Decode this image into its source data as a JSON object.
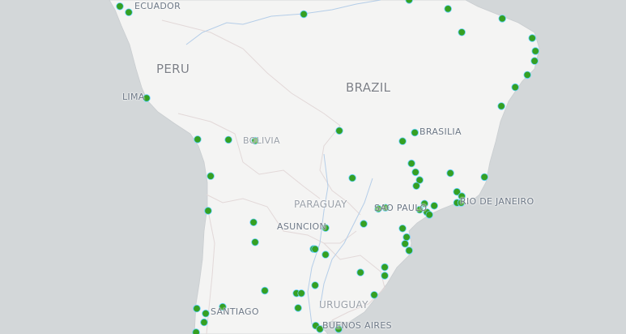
{
  "map": {
    "colors": {
      "ocean": "#d3d7d9",
      "land": "#f4f4f3",
      "border": "#e3d9d9",
      "river": "#a9c7e6",
      "marker_fill": "#35a022",
      "marker_stroke": "#5fd0ff"
    },
    "labels": {
      "ecuador": "ECUADOR",
      "peru": "PERU",
      "lima": "LIMA",
      "brazil": "BRAZIL",
      "brasilia": "BRASILIA",
      "bolivia": "BOLIVIA",
      "paraguay": "PARAGUAY",
      "sao_paulo": "SAO PAULO",
      "rio": "RIO DE JANEIRO",
      "asuncion": "ASUNCION",
      "uruguay": "URUGUAY",
      "santiago": "SANTIAGO",
      "buenos_aires": "BUENOS AIRES"
    },
    "markers": [
      [
        -2.15,
        -79.95
      ],
      [
        -2.8,
        -78.98
      ],
      [
        -3.0,
        -59.91
      ],
      [
        -1.45,
        -48.43
      ],
      [
        -2.42,
        -44.19
      ],
      [
        -3.48,
        -38.28
      ],
      [
        -4.97,
        -42.69
      ],
      [
        -5.6,
        -35.01
      ],
      [
        -7.0,
        -34.66
      ],
      [
        -8.07,
        -34.75
      ],
      [
        -9.57,
        -35.54
      ],
      [
        -10.89,
        -36.86
      ],
      [
        -12.9,
        -38.37
      ],
      [
        -12.05,
        -77.04
      ],
      [
        -15.5,
        -56.03
      ],
      [
        -15.7,
        -47.81
      ],
      [
        -16.6,
        -49.14
      ],
      [
        -16.4,
        -71.48
      ],
      [
        -16.45,
        -68.12
      ],
      [
        -16.55,
        -65.21
      ],
      [
        -18.9,
        -48.17
      ],
      [
        -19.8,
        -47.73
      ],
      [
        -20.6,
        -47.28
      ],
      [
        -19.9,
        -43.93
      ],
      [
        -20.3,
        -40.22
      ],
      [
        -20.2,
        -70.06
      ],
      [
        -20.4,
        -54.61
      ],
      [
        -21.2,
        -47.64
      ],
      [
        -21.8,
        -43.22
      ],
      [
        -22.25,
        -42.69
      ],
      [
        -23.0,
        -46.75
      ],
      [
        -23.2,
        -45.69
      ],
      [
        -22.9,
        -43.2
      ],
      [
        -22.9,
        -42.75
      ],
      [
        -23.5,
        -51.79
      ],
      [
        -23.4,
        -51.0
      ],
      [
        -23.6,
        -47.28
      ],
      [
        -23.85,
        -46.49
      ],
      [
        -24.1,
        -46.22
      ],
      [
        -23.7,
        -70.33
      ],
      [
        -25.0,
        -53.38
      ],
      [
        -24.85,
        -65.38
      ],
      [
        -25.4,
        -57.53
      ],
      [
        -25.45,
        -49.14
      ],
      [
        -26.3,
        -48.7
      ],
      [
        -26.95,
        -48.87
      ],
      [
        -27.6,
        -48.43
      ],
      [
        -26.8,
        -65.21
      ],
      [
        -27.45,
        -58.85
      ],
      [
        -27.47,
        -58.67
      ],
      [
        -28.0,
        -57.53
      ],
      [
        -29.2,
        -51.08
      ],
      [
        -30.0,
        -51.08
      ],
      [
        -29.7,
        -53.73
      ],
      [
        -30.9,
        -58.67
      ],
      [
        -31.4,
        -64.15
      ],
      [
        -31.65,
        -60.7
      ],
      [
        -31.65,
        -60.17
      ],
      [
        -33.0,
        -60.53
      ],
      [
        -31.8,
        -52.23
      ],
      [
        -33.05,
        -71.57
      ],
      [
        -33.5,
        -70.6
      ],
      [
        -32.9,
        -68.74
      ],
      [
        -34.3,
        -70.77
      ],
      [
        -34.6,
        -58.6
      ],
      [
        -34.9,
        -58.15
      ],
      [
        -34.9,
        -56.11
      ],
      [
        -35.2,
        -71.65
      ]
    ]
  }
}
